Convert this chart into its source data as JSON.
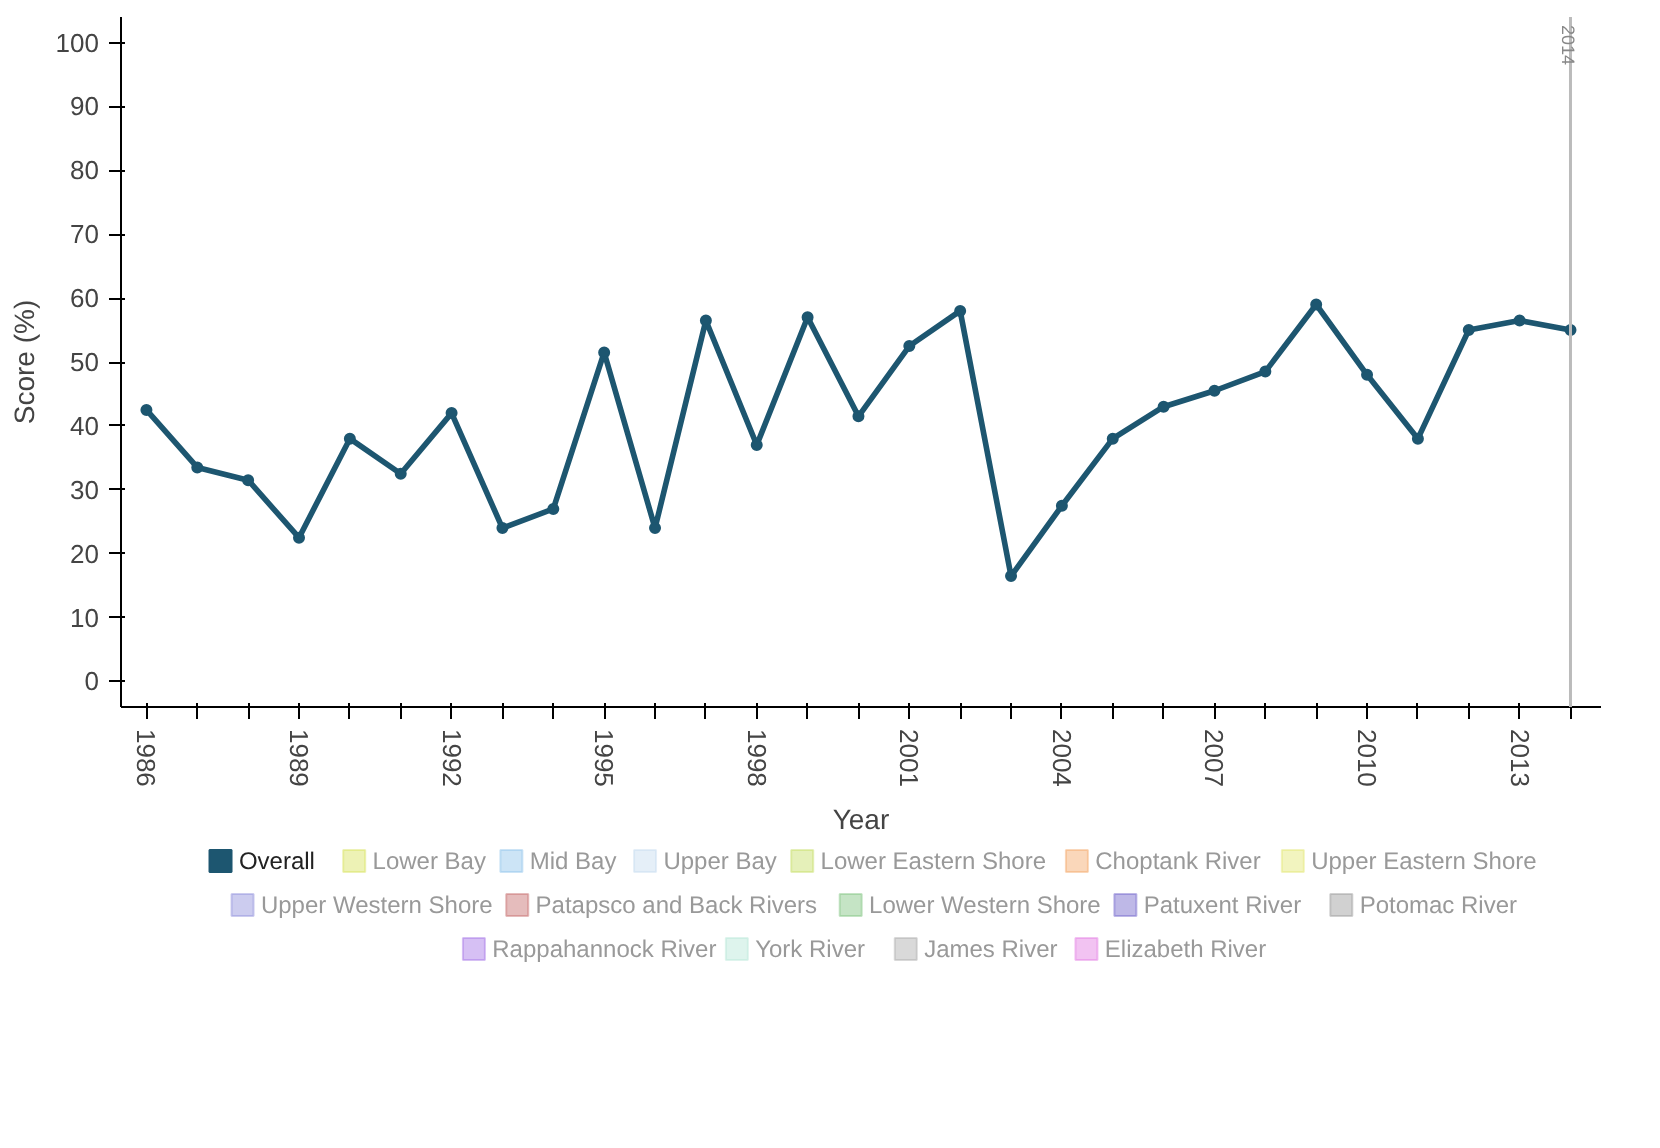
{
  "chart_data": {
    "type": "line",
    "xlabel": "Year",
    "ylabel": "Score (%)",
    "x": [
      1986,
      1987,
      1988,
      1989,
      1990,
      1991,
      1992,
      1993,
      1994,
      1995,
      1996,
      1997,
      1998,
      1999,
      2000,
      2001,
      2002,
      2003,
      2004,
      2005,
      2006,
      2007,
      2008,
      2009,
      2010,
      2011,
      2012,
      2013,
      2014
    ],
    "series": [
      {
        "name": "Overall",
        "color": "#1d5670",
        "values": [
          42.5,
          33.5,
          31.5,
          22.5,
          38,
          32.5,
          42,
          24,
          27,
          51.5,
          24,
          56.5,
          37,
          57,
          41.5,
          52.5,
          58,
          16.5,
          27.5,
          38,
          43,
          45.5,
          48.5,
          59,
          48,
          38,
          55,
          56.5,
          55
        ]
      },
      {
        "name": "Lower Bay",
        "color": "#d6e35a",
        "values": [
          null,
          null,
          null,
          null,
          null,
          null,
          null,
          null,
          null,
          null,
          null,
          null,
          null,
          null,
          null,
          null,
          null,
          null,
          null,
          null,
          null,
          null,
          null,
          null,
          null,
          null,
          null,
          null,
          null
        ]
      },
      {
        "name": "Mid Bay",
        "color": "#8fc3ec",
        "values": [
          null,
          null,
          null,
          null,
          null,
          null,
          null,
          null,
          null,
          null,
          null,
          null,
          null,
          null,
          null,
          null,
          null,
          null,
          null,
          null,
          null,
          null,
          null,
          null,
          null,
          null,
          null,
          null,
          null
        ]
      },
      {
        "name": "Upper Bay",
        "color": "#c6dcef",
        "values": [
          null,
          null,
          null,
          null,
          null,
          null,
          null,
          null,
          null,
          null,
          null,
          null,
          null,
          null,
          null,
          null,
          null,
          null,
          null,
          null,
          null,
          null,
          null,
          null,
          null,
          null,
          null,
          null,
          null
        ]
      },
      {
        "name": "Lower Eastern Shore",
        "color": "#c5dd63",
        "values": [
          null,
          null,
          null,
          null,
          null,
          null,
          null,
          null,
          null,
          null,
          null,
          null,
          null,
          null,
          null,
          null,
          null,
          null,
          null,
          null,
          null,
          null,
          null,
          null,
          null,
          null,
          null,
          null,
          null
        ]
      },
      {
        "name": "Choptank River",
        "color": "#f4a766",
        "values": [
          null,
          null,
          null,
          null,
          null,
          null,
          null,
          null,
          null,
          null,
          null,
          null,
          null,
          null,
          null,
          null,
          null,
          null,
          null,
          null,
          null,
          null,
          null,
          null,
          null,
          null,
          null,
          null,
          null
        ]
      },
      {
        "name": "Upper Eastern Shore",
        "color": "#e2e672",
        "values": [
          null,
          null,
          null,
          null,
          null,
          null,
          null,
          null,
          null,
          null,
          null,
          null,
          null,
          null,
          null,
          null,
          null,
          null,
          null,
          null,
          null,
          null,
          null,
          null,
          null,
          null,
          null,
          null,
          null
        ]
      },
      {
        "name": "Upper Western Shore",
        "color": "#8f8fdc",
        "values": [
          null,
          null,
          null,
          null,
          null,
          null,
          null,
          null,
          null,
          null,
          null,
          null,
          null,
          null,
          null,
          null,
          null,
          null,
          null,
          null,
          null,
          null,
          null,
          null,
          null,
          null,
          null,
          null,
          null
        ]
      },
      {
        "name": "Patapsco and Back Rivers",
        "color": "#c66a6a",
        "values": [
          null,
          null,
          null,
          null,
          null,
          null,
          null,
          null,
          null,
          null,
          null,
          null,
          null,
          null,
          null,
          null,
          null,
          null,
          null,
          null,
          null,
          null,
          null,
          null,
          null,
          null,
          null,
          null,
          null
        ]
      },
      {
        "name": "Lower Western Shore",
        "color": "#7fc47f",
        "values": [
          null,
          null,
          null,
          null,
          null,
          null,
          null,
          null,
          null,
          null,
          null,
          null,
          null,
          null,
          null,
          null,
          null,
          null,
          null,
          null,
          null,
          null,
          null,
          null,
          null,
          null,
          null,
          null,
          null
        ]
      },
      {
        "name": "Patuxent River",
        "color": "#6f62c9",
        "values": [
          null,
          null,
          null,
          null,
          null,
          null,
          null,
          null,
          null,
          null,
          null,
          null,
          null,
          null,
          null,
          null,
          null,
          null,
          null,
          null,
          null,
          null,
          null,
          null,
          null,
          null,
          null,
          null,
          null
        ]
      },
      {
        "name": "Potomac River",
        "color": "#9a9a9a",
        "values": [
          null,
          null,
          null,
          null,
          null,
          null,
          null,
          null,
          null,
          null,
          null,
          null,
          null,
          null,
          null,
          null,
          null,
          null,
          null,
          null,
          null,
          null,
          null,
          null,
          null,
          null,
          null,
          null,
          null
        ]
      },
      {
        "name": "Rappahannock River",
        "color": "#a374e6",
        "values": [
          null,
          null,
          null,
          null,
          null,
          null,
          null,
          null,
          null,
          null,
          null,
          null,
          null,
          null,
          null,
          null,
          null,
          null,
          null,
          null,
          null,
          null,
          null,
          null,
          null,
          null,
          null,
          null,
          null
        ]
      },
      {
        "name": "York River",
        "color": "#b6e6d6",
        "values": [
          null,
          null,
          null,
          null,
          null,
          null,
          null,
          null,
          null,
          null,
          null,
          null,
          null,
          null,
          null,
          null,
          null,
          null,
          null,
          null,
          null,
          null,
          null,
          null,
          null,
          null,
          null,
          null,
          null
        ]
      },
      {
        "name": "James River",
        "color": "#ababab",
        "values": [
          null,
          null,
          null,
          null,
          null,
          null,
          null,
          null,
          null,
          null,
          null,
          null,
          null,
          null,
          null,
          null,
          null,
          null,
          null,
          null,
          null,
          null,
          null,
          null,
          null,
          null,
          null,
          null,
          null
        ]
      },
      {
        "name": "Elizabeth River",
        "color": "#e27ae2",
        "values": [
          null,
          null,
          null,
          null,
          null,
          null,
          null,
          null,
          null,
          null,
          null,
          null,
          null,
          null,
          null,
          null,
          null,
          null,
          null,
          null,
          null,
          null,
          null,
          null,
          null,
          null,
          null,
          null,
          null
        ]
      }
    ],
    "xlim": [
      1985.5,
      2014.6
    ],
    "ylim": [
      -4,
      104
    ],
    "xticks": [
      1986,
      {
        "value": 1987,
        "label": null
      },
      {
        "value": 1988,
        "label": null
      },
      1989,
      {
        "value": 1990,
        "label": null
      },
      {
        "value": 1991,
        "label": null
      },
      1992,
      {
        "value": 1993,
        "label": null
      },
      {
        "value": 1994,
        "label": null
      },
      1995,
      {
        "value": 1996,
        "label": null
      },
      {
        "value": 1997,
        "label": null
      },
      1998,
      {
        "value": 1999,
        "label": null
      },
      {
        "value": 2000,
        "label": null
      },
      2001,
      {
        "value": 2002,
        "label": null
      },
      {
        "value": 2003,
        "label": null
      },
      2004,
      {
        "value": 2005,
        "label": null
      },
      {
        "value": 2006,
        "label": null
      },
      2007,
      {
        "value": 2008,
        "label": null
      },
      {
        "value": 2009,
        "label": null
      },
      2010,
      {
        "value": 2011,
        "label": null
      },
      {
        "value": 2012,
        "label": null
      },
      2013,
      {
        "value": 2014,
        "label": null
      }
    ],
    "yticks": [
      0,
      10,
      20,
      30,
      40,
      50,
      60,
      70,
      80,
      90,
      100
    ],
    "ref_lines": [
      {
        "axis": "x",
        "value": 2014,
        "label": "2014",
        "color": "#bbbbbb"
      }
    ],
    "grid": false,
    "legend": "bottom",
    "marker": "circle",
    "line_style": "solid"
  }
}
